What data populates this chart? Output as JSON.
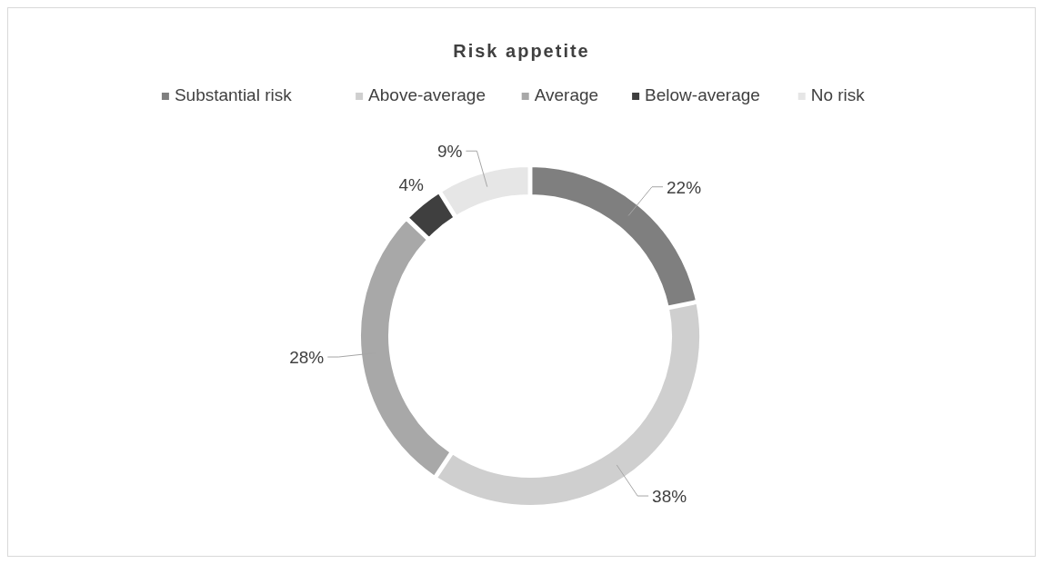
{
  "chart_data": {
    "type": "donut",
    "title": "Risk appetite",
    "categories": [
      "Substantial risk",
      "Above-average",
      "Average",
      "Below-average",
      "No risk"
    ],
    "values": [
      22,
      38,
      28,
      4,
      9
    ],
    "value_labels": [
      "22%",
      "38%",
      "28%",
      "4%",
      "9%"
    ],
    "colors": [
      "#7f7f7f",
      "#cfcfcf",
      "#a8a8a8",
      "#3f3f3f",
      "#e6e6e6"
    ],
    "legend": "top"
  }
}
